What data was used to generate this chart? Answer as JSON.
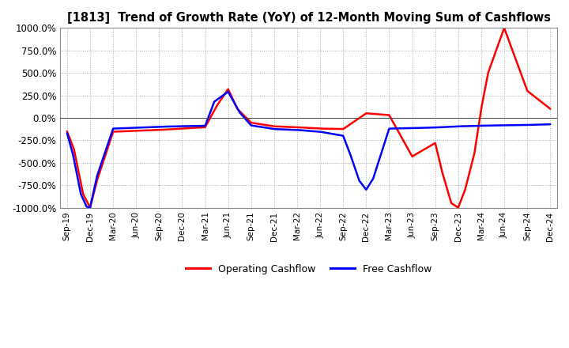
{
  "title": "[1813]  Trend of Growth Rate (YoY) of 12-Month Moving Sum of Cashflows",
  "ylim": [
    -1000,
    1000
  ],
  "yticks": [
    -1000,
    -750,
    -500,
    -250,
    0,
    250,
    500,
    750,
    1000
  ],
  "background_color": "#ffffff",
  "plot_background": "#ffffff",
  "grid_color": "#aaaaaa",
  "operating_color": "#ff0000",
  "free_color": "#0000ff",
  "x_labels": [
    "Sep-19",
    "Dec-19",
    "Mar-20",
    "Jun-20",
    "Sep-20",
    "Dec-20",
    "Mar-21",
    "Jun-21",
    "Sep-21",
    "Dec-21",
    "Mar-22",
    "Jun-22",
    "Sep-22",
    "Dec-22",
    "Mar-23",
    "Jun-23",
    "Sep-23",
    "Dec-23",
    "Mar-24",
    "Jun-24",
    "Sep-24",
    "Dec-24"
  ],
  "operating_keypoints_x": [
    0,
    0.3,
    0.7,
    1.0,
    1.3,
    2.0,
    3.0,
    4.0,
    5.0,
    6.0,
    6.5,
    7.0,
    7.4,
    8.0,
    9.0,
    10.0,
    11.0,
    12.0,
    13.0,
    14.0,
    15.0,
    16.0,
    16.3,
    16.7,
    17.0,
    17.3,
    17.7,
    18.0,
    18.3,
    19.0,
    20.0,
    21.0
  ],
  "operating_keypoints_y": [
    -150,
    -350,
    -850,
    -1000,
    -700,
    -155,
    -145,
    -135,
    -120,
    -105,
    130,
    320,
    100,
    -55,
    -95,
    -105,
    -120,
    -125,
    50,
    30,
    -430,
    -280,
    -600,
    -950,
    -1000,
    -800,
    -400,
    100,
    500,
    1000,
    300,
    100
  ],
  "free_keypoints_x": [
    0,
    0.25,
    0.6,
    0.85,
    1.0,
    1.3,
    2.0,
    3.0,
    4.0,
    5.0,
    6.0,
    6.4,
    7.0,
    7.5,
    8.0,
    9.0,
    10.0,
    11.0,
    12.0,
    12.3,
    12.7,
    13.0,
    13.3,
    14.0,
    15.0,
    16.0,
    17.0,
    18.0,
    19.0,
    20.0,
    21.0
  ],
  "free_keypoints_y": [
    -170,
    -400,
    -850,
    -990,
    -1000,
    -650,
    -120,
    -110,
    -100,
    -93,
    -90,
    180,
    290,
    60,
    -85,
    -125,
    -135,
    -155,
    -200,
    -400,
    -700,
    -800,
    -680,
    -120,
    -115,
    -108,
    -95,
    -88,
    -83,
    -80,
    -72
  ]
}
